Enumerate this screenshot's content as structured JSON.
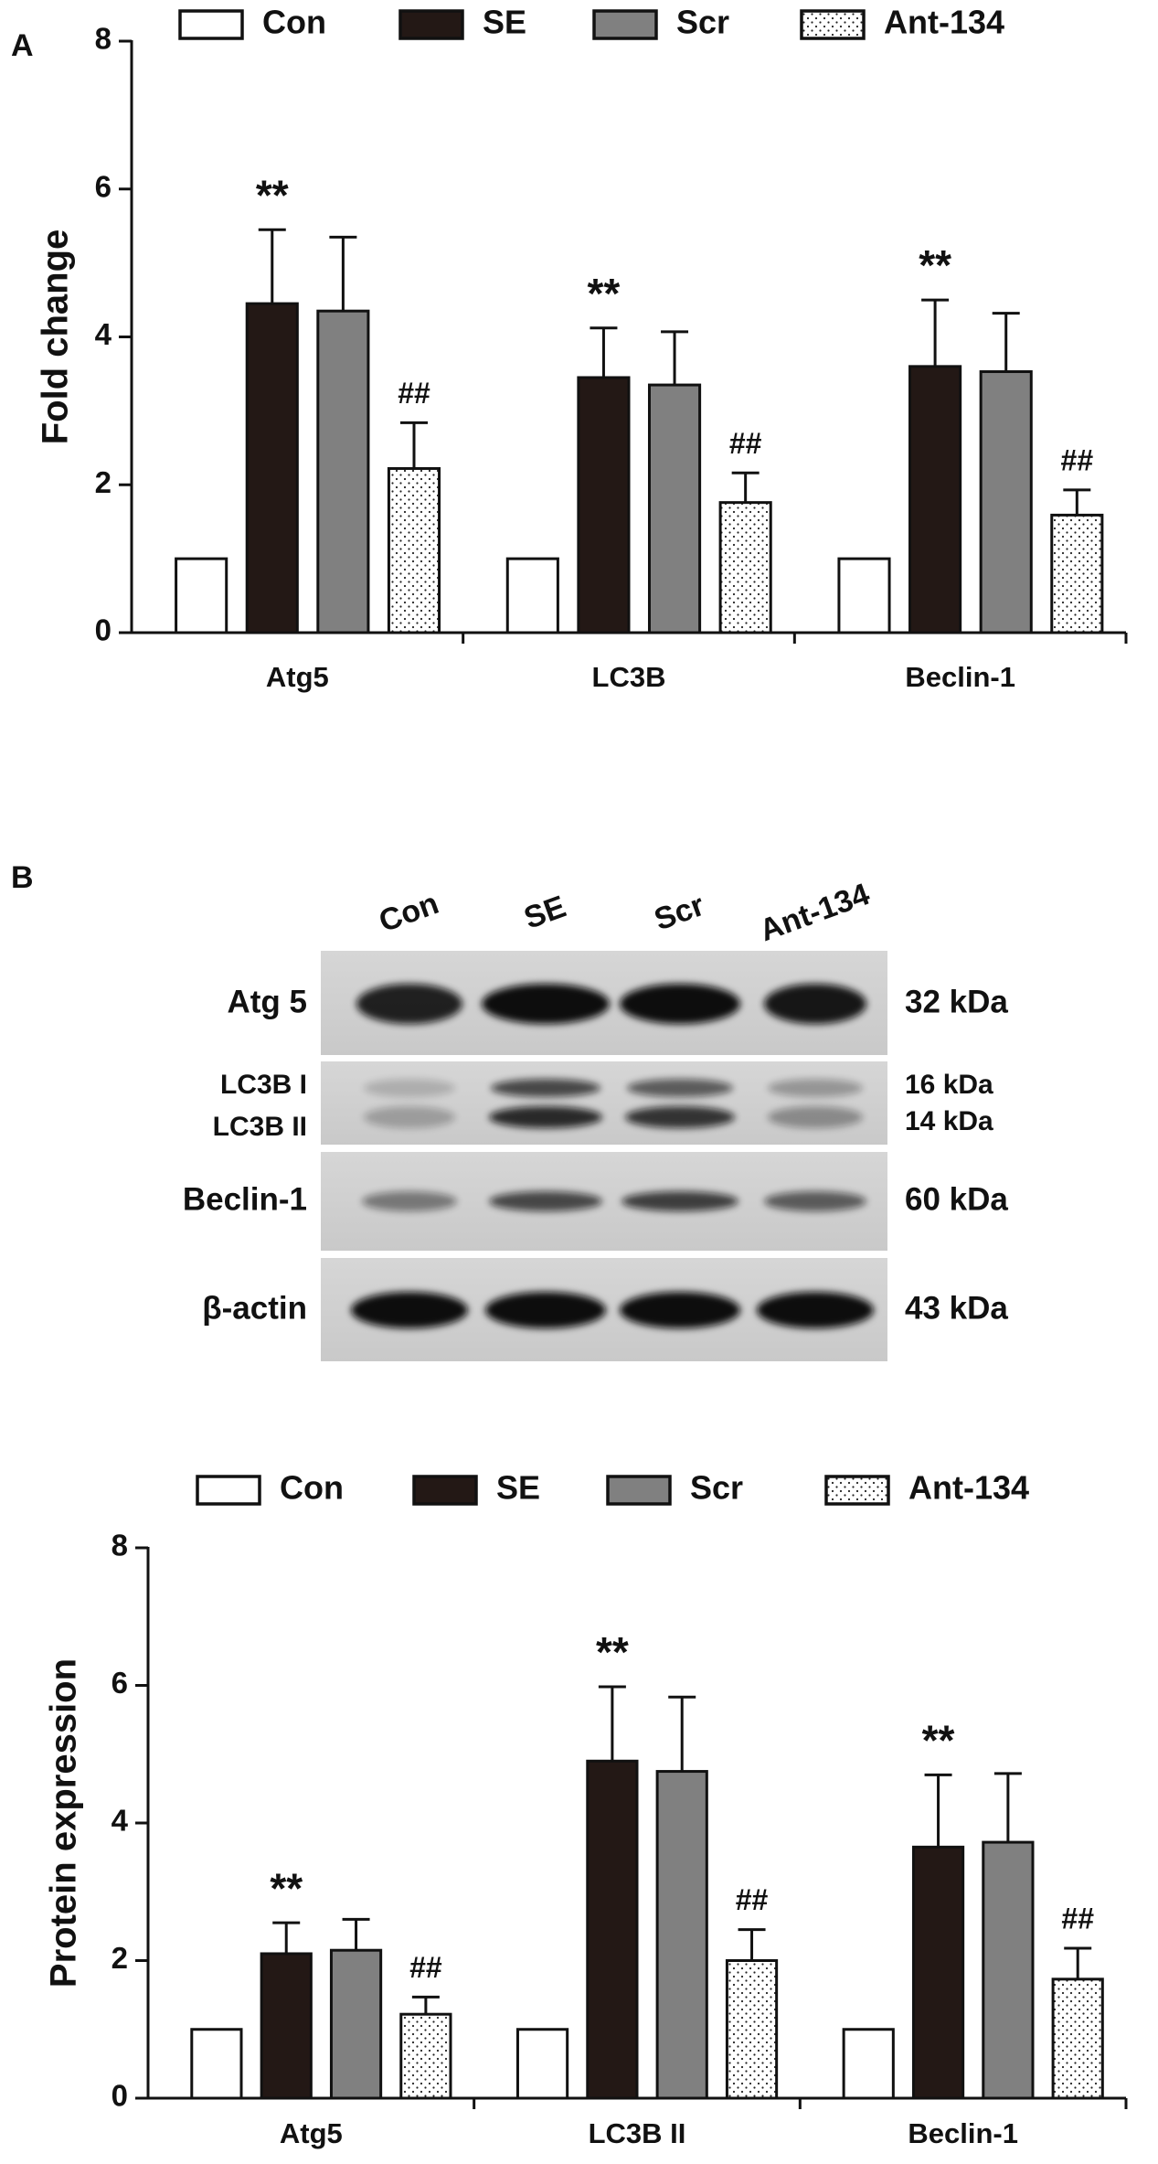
{
  "panel_labels": [
    "A",
    "B"
  ],
  "chart_data": [
    {
      "type": "bar",
      "y_label": "Fold change",
      "categories": [
        "Atg5",
        "LC3B",
        "Beclin-1"
      ],
      "ylim": [
        0,
        8
      ],
      "yticks": [
        0,
        2,
        4,
        6,
        8
      ],
      "series": [
        {
          "name": "Con",
          "color": "#ffffff",
          "values": [
            1,
            1,
            1
          ],
          "errors": [
            0,
            0,
            0
          ]
        },
        {
          "name": "SE",
          "color": "#231815",
          "values": [
            4.45,
            3.45,
            3.6
          ],
          "errors": [
            1.0,
            0.67,
            0.9
          ],
          "annotations": [
            "**",
            "**",
            "**"
          ]
        },
        {
          "name": "Scr",
          "color": "#808080",
          "values": [
            4.35,
            3.35,
            3.53
          ],
          "errors": [
            1.0,
            0.72,
            0.79
          ]
        },
        {
          "name": "Ant-134",
          "color": "#ffffff",
          "pattern": "dots",
          "values": [
            2.22,
            1.76,
            1.59
          ],
          "errors": [
            0.62,
            0.4,
            0.34
          ],
          "annotations": [
            "##",
            "##",
            "##"
          ]
        }
      ]
    },
    {
      "type": "bar",
      "y_label": "Protein expression",
      "categories": [
        "Atg5",
        "LC3B II",
        "Beclin-1"
      ],
      "ylim": [
        0,
        8
      ],
      "yticks": [
        0,
        2,
        4,
        6,
        8
      ],
      "series": [
        {
          "name": "Con",
          "color": "#ffffff",
          "values": [
            1,
            1,
            1
          ],
          "errors": [
            0,
            0,
            0
          ]
        },
        {
          "name": "SE",
          "color": "#231815",
          "values": [
            2.1,
            4.9,
            3.65
          ],
          "errors": [
            0.45,
            1.08,
            1.05
          ],
          "annotations": [
            "**",
            "**",
            "**"
          ]
        },
        {
          "name": "Scr",
          "color": "#808080",
          "values": [
            2.15,
            4.75,
            3.72
          ],
          "errors": [
            0.45,
            1.08,
            1.0
          ]
        },
        {
          "name": "Ant-134",
          "color": "#ffffff",
          "pattern": "dots",
          "values": [
            1.22,
            2.0,
            1.73
          ],
          "errors": [
            0.25,
            0.45,
            0.45
          ],
          "annotations": [
            "##",
            "##",
            "##"
          ]
        }
      ]
    }
  ],
  "blot": {
    "lanes": [
      "Con",
      "SE",
      "Scr",
      "Ant-134"
    ],
    "rows": [
      {
        "labels": [
          "Atg 5"
        ],
        "kda": [
          "32 kDa"
        ]
      },
      {
        "labels": [
          "LC3B I",
          "LC3B II"
        ],
        "kda": [
          "16 kDa",
          "14 kDa"
        ]
      },
      {
        "labels": [
          "Beclin-1"
        ],
        "kda": [
          "60 kDa"
        ]
      },
      {
        "labels": [
          "β-actin"
        ],
        "kda": [
          "43 kDa"
        ]
      }
    ]
  }
}
